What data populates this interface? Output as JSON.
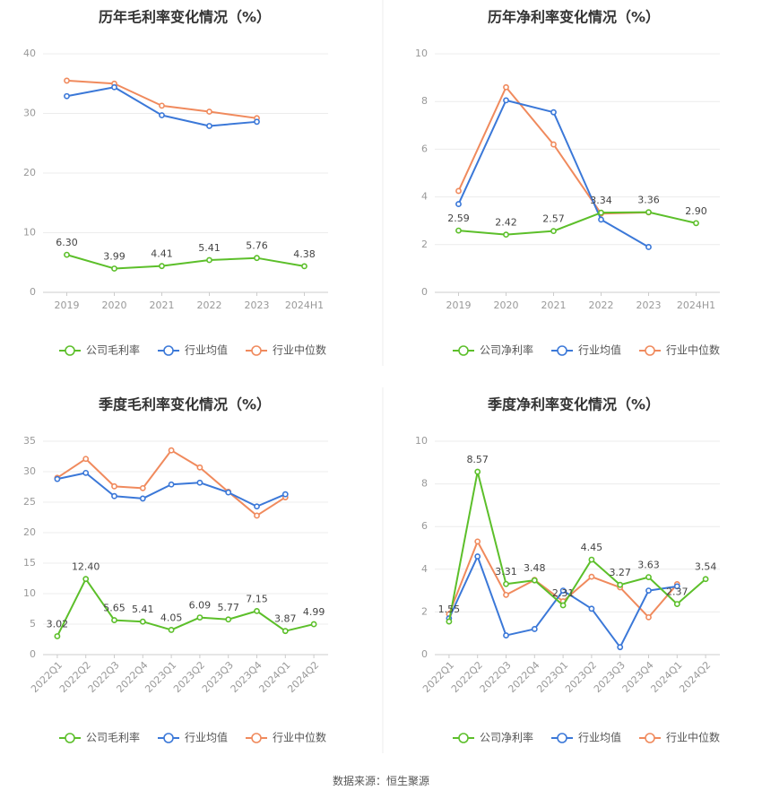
{
  "colors": {
    "company": "#5cbf2a",
    "mean": "#3b78d8",
    "median": "#f08a5d"
  },
  "source_text": "数据来源：恒生聚源",
  "chart_data": [
    {
      "type": "line",
      "title": "历年毛利率变化情况（%）",
      "categories": [
        "2019",
        "2020",
        "2021",
        "2022",
        "2023",
        "2024H1"
      ],
      "ylim": [
        0,
        40
      ],
      "yticks": [
        0,
        10,
        20,
        30,
        40
      ],
      "grid": true,
      "legend_position": "bottom",
      "series": [
        {
          "name": "公司毛利率",
          "values": [
            6.3,
            3.99,
            4.41,
            5.41,
            5.76,
            4.38
          ],
          "labels": [
            "6.30",
            "3.99",
            "4.41",
            "5.41",
            "5.76",
            "4.38"
          ]
        },
        {
          "name": "行业均值",
          "values": [
            32.9,
            34.4,
            29.7,
            27.9,
            28.6,
            null
          ]
        },
        {
          "name": "行业中位数",
          "values": [
            35.5,
            35.0,
            31.3,
            30.3,
            29.2,
            null
          ]
        }
      ]
    },
    {
      "type": "line",
      "title": "历年净利率变化情况（%）",
      "categories": [
        "2019",
        "2020",
        "2021",
        "2022",
        "2023",
        "2024H1"
      ],
      "ylim": [
        0,
        10
      ],
      "yticks": [
        0,
        2,
        4,
        6,
        8,
        10
      ],
      "grid": true,
      "legend_position": "bottom",
      "series": [
        {
          "name": "公司净利率",
          "values": [
            2.59,
            2.42,
            2.57,
            3.34,
            3.36,
            2.9
          ],
          "labels": [
            "2.59",
            "2.42",
            "2.57",
            "3.34",
            "3.36",
            "2.90"
          ]
        },
        {
          "name": "行业均值",
          "values": [
            3.7,
            8.05,
            7.55,
            3.05,
            1.9,
            null
          ]
        },
        {
          "name": "行业中位数",
          "values": [
            4.25,
            8.6,
            6.2,
            3.3,
            3.35,
            null
          ]
        }
      ]
    },
    {
      "type": "line",
      "title": "季度毛利率变化情况（%）",
      "categories": [
        "2022Q1",
        "2022Q2",
        "2022Q3",
        "2022Q4",
        "2023Q1",
        "2023Q2",
        "2023Q3",
        "2023Q4",
        "2024Q1",
        "2024Q2"
      ],
      "ylim": [
        0,
        35
      ],
      "yticks": [
        0,
        5,
        10,
        15,
        20,
        25,
        30,
        35
      ],
      "grid": true,
      "legend_position": "bottom",
      "series": [
        {
          "name": "公司毛利率",
          "values": [
            3.02,
            12.4,
            5.65,
            5.41,
            4.05,
            6.09,
            5.77,
            7.15,
            3.87,
            4.99
          ],
          "labels": [
            "3.02",
            "12.40",
            "5.65",
            "5.41",
            "4.05",
            "6.09",
            "5.77",
            "7.15",
            "3.87",
            "4.99"
          ]
        },
        {
          "name": "行业均值",
          "values": [
            28.8,
            29.8,
            26.0,
            25.6,
            27.9,
            28.2,
            26.6,
            24.3,
            26.3,
            null
          ]
        },
        {
          "name": "行业中位数",
          "values": [
            29.0,
            32.1,
            27.6,
            27.3,
            33.5,
            30.7,
            26.7,
            22.8,
            25.8,
            null
          ]
        }
      ]
    },
    {
      "type": "line",
      "title": "季度净利率变化情况（%）",
      "categories": [
        "2022Q1",
        "2022Q2",
        "2022Q3",
        "2022Q4",
        "2023Q1",
        "2023Q2",
        "2023Q3",
        "2023Q4",
        "2024Q1",
        "2024Q2"
      ],
      "ylim": [
        0,
        10
      ],
      "yticks": [
        0,
        2,
        4,
        6,
        8,
        10
      ],
      "grid": true,
      "legend_position": "bottom",
      "series": [
        {
          "name": "公司净利率",
          "values": [
            1.55,
            8.57,
            3.31,
            3.48,
            2.31,
            4.45,
            3.27,
            3.63,
            2.37,
            3.54
          ],
          "labels": [
            "1.55",
            "8.57",
            "3.31",
            "3.48",
            "2.31",
            "4.45",
            "3.27",
            "3.63",
            "2.37",
            "3.54"
          ]
        },
        {
          "name": "行业均值",
          "values": [
            1.7,
            4.6,
            0.9,
            1.2,
            3.0,
            2.15,
            0.35,
            3.0,
            3.2,
            null
          ]
        },
        {
          "name": "行业中位数",
          "values": [
            1.9,
            5.3,
            2.8,
            3.5,
            2.5,
            3.65,
            3.15,
            1.75,
            3.3,
            null
          ]
        }
      ]
    }
  ]
}
